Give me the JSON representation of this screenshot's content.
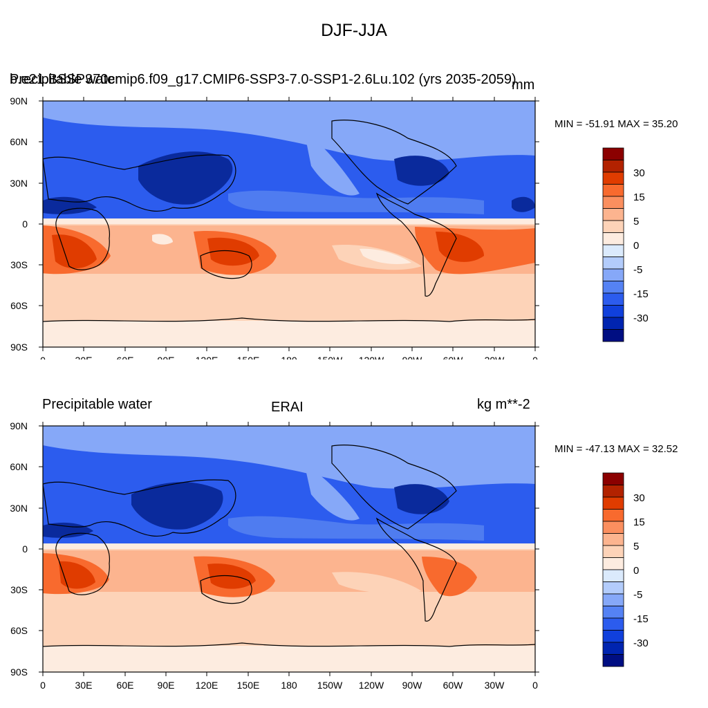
{
  "figure": {
    "title": "DJF-JJA"
  },
  "panels": [
    {
      "left_title": "Precipitable water",
      "center_title": "b.e21.BSSP370cmip6.f09_g17.CMIP6-SSP3-7.0-SSP1-2.6Lu.102 (yrs 2035-2059)",
      "right_title": "mm",
      "stats": "MIN = -51.91 MAX =  35.20"
    },
    {
      "left_title": "Precipitable water",
      "center_title": "ERAI",
      "right_title": "kg m**-2",
      "stats": "MIN = -47.13 MAX =  32.52"
    }
  ],
  "axes": {
    "lat_ticks": [
      "90N",
      "60N",
      "30N",
      "0",
      "30S",
      "60S",
      "90S"
    ],
    "lon_ticks": [
      "0",
      "30E",
      "60E",
      "90E",
      "120E",
      "150E",
      "180",
      "150W",
      "120W",
      "90W",
      "60W",
      "30W",
      "0"
    ]
  },
  "colorbar": {
    "colors": [
      "#8b0000",
      "#b22200",
      "#e03c00",
      "#f86a2e",
      "#fb8f5f",
      "#fcb48f",
      "#fdd3b8",
      "#fdece0",
      "#dbeafc",
      "#b3ccfb",
      "#86a8f8",
      "#5582f4",
      "#2c5cee",
      "#1040dc",
      "#0024b0",
      "#000e82"
    ],
    "labels": [
      "30",
      "15",
      "5",
      "0",
      "-5",
      "-15",
      "-30"
    ]
  },
  "palette": {
    "deep_blue": "#0a2a9c",
    "mid_blue": "#2c5cee",
    "light_blue": "#86a8f8",
    "sky": "#4f7cf0",
    "peach": "#fcb48f",
    "light_peach": "#fdd3b8",
    "cream": "#fdece0",
    "orange": "#f86a2e",
    "red": "#e03c00"
  }
}
